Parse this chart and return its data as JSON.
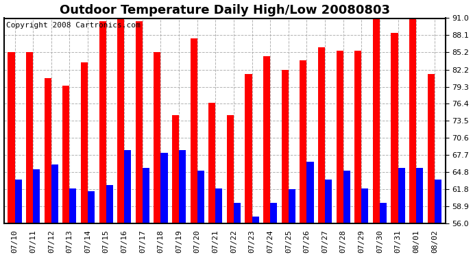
{
  "title": "Outdoor Temperature Daily High/Low 20080803",
  "copyright": "Copyright 2008 Cartronics.com",
  "dates": [
    "07/10",
    "07/11",
    "07/12",
    "07/13",
    "07/14",
    "07/15",
    "07/16",
    "07/17",
    "07/18",
    "07/19",
    "07/20",
    "07/21",
    "07/22",
    "07/23",
    "07/24",
    "07/25",
    "07/26",
    "07/27",
    "07/28",
    "07/29",
    "07/30",
    "07/31",
    "08/01",
    "08/02"
  ],
  "highs": [
    85.2,
    85.2,
    80.8,
    79.5,
    83.5,
    90.5,
    91.5,
    90.5,
    85.2,
    74.5,
    87.5,
    76.6,
    74.5,
    81.5,
    84.5,
    82.2,
    83.8,
    86.0,
    85.5,
    85.5,
    91.0,
    88.5,
    91.0,
    81.5
  ],
  "lows": [
    63.5,
    65.2,
    66.0,
    62.0,
    61.5,
    62.5,
    68.5,
    65.5,
    68.0,
    68.5,
    65.0,
    62.0,
    59.5,
    57.2,
    59.5,
    61.8,
    66.5,
    63.5,
    65.0,
    62.0,
    59.5,
    65.5,
    65.5,
    63.5
  ],
  "high_color": "#ff0000",
  "low_color": "#0000ff",
  "bg_color": "#ffffff",
  "plot_bg_color": "#ffffff",
  "grid_color": "#aaaaaa",
  "ymin": 56.0,
  "ymax": 91.0,
  "yticks": [
    56.0,
    58.9,
    61.8,
    64.8,
    67.7,
    70.6,
    73.5,
    76.4,
    79.3,
    82.2,
    85.2,
    88.1,
    91.0
  ],
  "title_fontsize": 13,
  "copyright_fontsize": 8,
  "tick_fontsize": 8,
  "bar_width": 0.38
}
